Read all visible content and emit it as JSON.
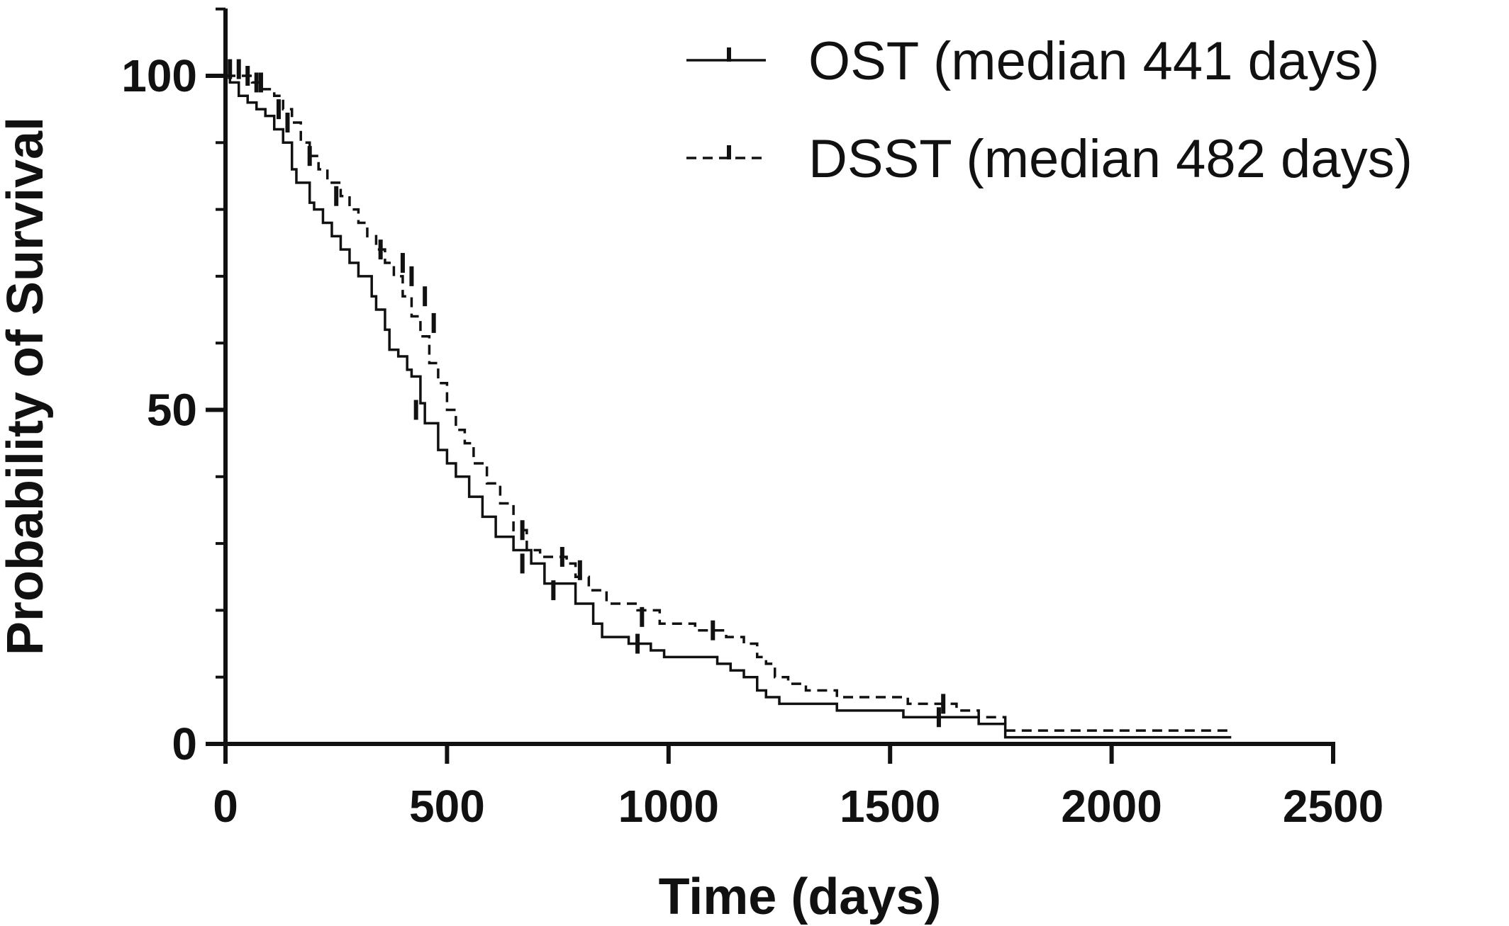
{
  "chart_data": {
    "type": "line",
    "subtype": "kaplan-meier",
    "title": "",
    "xlabel": "Time (days)",
    "ylabel": "Probability of Survival",
    "xlim": [
      0,
      2500
    ],
    "ylim": [
      0,
      110
    ],
    "xticks": [
      0,
      500,
      1000,
      1500,
      2000,
      2500
    ],
    "yticks": [
      0,
      50,
      100
    ],
    "yminor_step": 10,
    "grid": false,
    "legend_position": "top-right",
    "colors": {
      "line": "#111111",
      "background": "#ffffff"
    },
    "series": [
      {
        "name": "OST",
        "legend_label": "OST  (median 441 days)",
        "line_style": "solid",
        "steps": [
          [
            0,
            100
          ],
          [
            10,
            99
          ],
          [
            30,
            97
          ],
          [
            50,
            96
          ],
          [
            70,
            95
          ],
          [
            90,
            94
          ],
          [
            110,
            92
          ],
          [
            130,
            90
          ],
          [
            150,
            86
          ],
          [
            160,
            84
          ],
          [
            190,
            81
          ],
          [
            200,
            80
          ],
          [
            220,
            78
          ],
          [
            240,
            76
          ],
          [
            260,
            74
          ],
          [
            280,
            72
          ],
          [
            300,
            70
          ],
          [
            330,
            67
          ],
          [
            340,
            65
          ],
          [
            360,
            62
          ],
          [
            370,
            59
          ],
          [
            390,
            58
          ],
          [
            410,
            56
          ],
          [
            420,
            55
          ],
          [
            440,
            51
          ],
          [
            450,
            48
          ],
          [
            480,
            44
          ],
          [
            500,
            42
          ],
          [
            520,
            40
          ],
          [
            550,
            37
          ],
          [
            580,
            34
          ],
          [
            610,
            31
          ],
          [
            650,
            29
          ],
          [
            690,
            27
          ],
          [
            720,
            24
          ],
          [
            790,
            21
          ],
          [
            830,
            18
          ],
          [
            850,
            16
          ],
          [
            910,
            15
          ],
          [
            960,
            14
          ],
          [
            990,
            13
          ],
          [
            1110,
            12
          ],
          [
            1140,
            11
          ],
          [
            1170,
            10
          ],
          [
            1200,
            8
          ],
          [
            1220,
            7
          ],
          [
            1250,
            6
          ],
          [
            1380,
            5
          ],
          [
            1530,
            4
          ],
          [
            1700,
            3
          ],
          [
            1760,
            1
          ],
          [
            2270,
            1
          ]
        ],
        "censor_points": [
          [
            430,
            50
          ],
          [
            670,
            27
          ],
          [
            740,
            23
          ],
          [
            930,
            15
          ],
          [
            1610,
            4
          ]
        ]
      },
      {
        "name": "DSST",
        "legend_label": "DSST  (median 482 days)",
        "line_style": "dashed",
        "steps": [
          [
            0,
            100
          ],
          [
            20,
            100
          ],
          [
            60,
            99
          ],
          [
            80,
            98
          ],
          [
            110,
            97
          ],
          [
            130,
            95
          ],
          [
            150,
            93
          ],
          [
            170,
            90
          ],
          [
            190,
            88
          ],
          [
            210,
            86
          ],
          [
            230,
            84
          ],
          [
            260,
            82
          ],
          [
            280,
            80
          ],
          [
            300,
            78
          ],
          [
            320,
            76
          ],
          [
            340,
            74
          ],
          [
            360,
            72
          ],
          [
            380,
            70
          ],
          [
            400,
            67
          ],
          [
            420,
            64
          ],
          [
            440,
            61
          ],
          [
            460,
            57
          ],
          [
            480,
            54
          ],
          [
            500,
            50
          ],
          [
            520,
            47
          ],
          [
            540,
            45
          ],
          [
            560,
            42
          ],
          [
            590,
            39
          ],
          [
            620,
            36
          ],
          [
            650,
            32
          ],
          [
            680,
            29
          ],
          [
            710,
            28
          ],
          [
            770,
            27
          ],
          [
            790,
            25
          ],
          [
            820,
            23
          ],
          [
            860,
            21
          ],
          [
            930,
            20
          ],
          [
            980,
            18
          ],
          [
            1060,
            17
          ],
          [
            1130,
            16
          ],
          [
            1170,
            15
          ],
          [
            1200,
            13
          ],
          [
            1220,
            12
          ],
          [
            1240,
            10
          ],
          [
            1270,
            9
          ],
          [
            1310,
            8
          ],
          [
            1380,
            7
          ],
          [
            1540,
            6
          ],
          [
            1650,
            5
          ],
          [
            1700,
            4
          ],
          [
            1760,
            2
          ],
          [
            2270,
            2
          ]
        ],
        "censor_points": [
          [
            10,
            101
          ],
          [
            30,
            101
          ],
          [
            50,
            100
          ],
          [
            70,
            99
          ],
          [
            80,
            99
          ],
          [
            120,
            95
          ],
          [
            140,
            93
          ],
          [
            190,
            88
          ],
          [
            250,
            82
          ],
          [
            350,
            74
          ],
          [
            400,
            72
          ],
          [
            420,
            70
          ],
          [
            450,
            67
          ],
          [
            470,
            63
          ],
          [
            670,
            32
          ],
          [
            760,
            28
          ],
          [
            800,
            26
          ],
          [
            940,
            19
          ],
          [
            1100,
            17
          ],
          [
            1620,
            6
          ]
        ]
      }
    ]
  }
}
